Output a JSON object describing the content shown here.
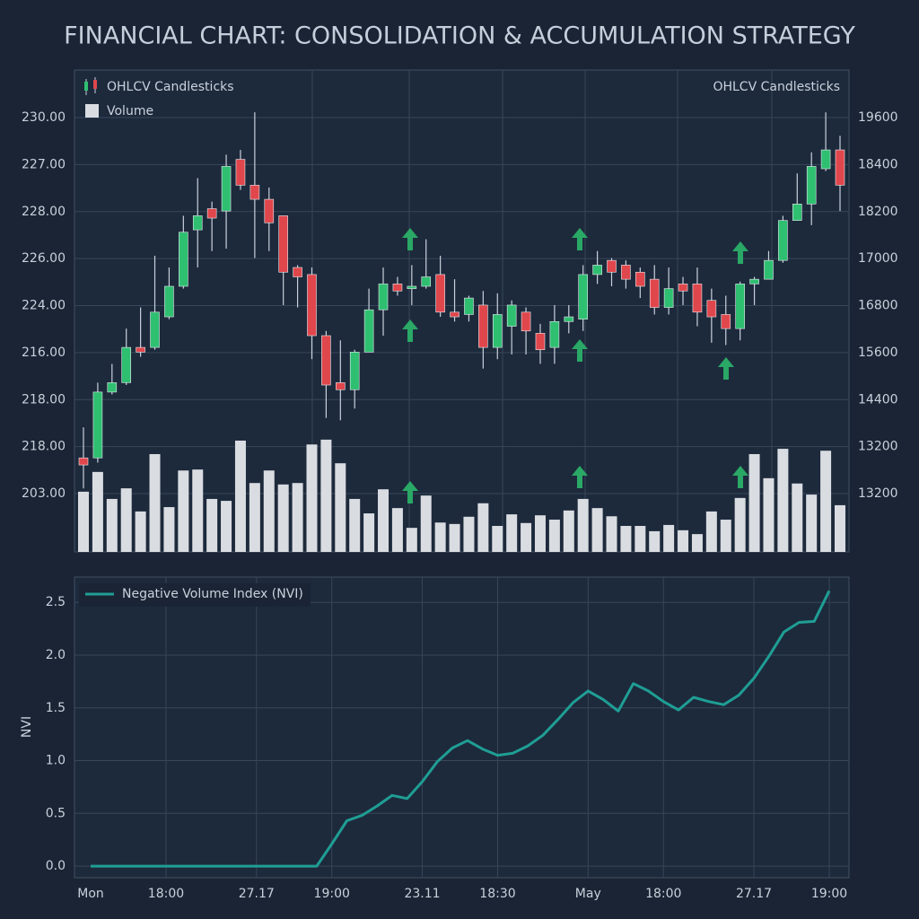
{
  "chart_data": [
    {
      "type": "candlestick",
      "title": "FINANCIAL CHART: CONSOLIDATION & ACCUMULATION STRATEGY",
      "y_axis_labels": [
        "230.00",
        "227.00",
        "228.00",
        "226.00",
        "224.00",
        "216.00",
        "218.00",
        "218.00",
        "203.00"
      ],
      "y2_axis_labels": [
        "19600",
        "18400",
        "18200",
        "17000",
        "16800",
        "15600",
        "14400",
        "13200",
        "13200"
      ],
      "ylim": [
        211.5,
        232.0
      ],
      "volume_lim": [
        0,
        100
      ],
      "series": [
        {
          "name": "OHLCV Candlesticks",
          "up_color": "#2fbf71",
          "down_color": "#e0474c",
          "open": [
            215.5,
            215.5,
            218.3,
            218.7,
            220.2,
            220.2,
            221.5,
            222.8,
            225.2,
            226.1,
            226.0,
            228.2,
            227.1,
            226.5,
            225.8,
            223.6,
            223.3,
            220.7,
            218.7,
            218.4,
            220.0,
            221.8,
            222.9,
            222.7,
            222.8,
            223.3,
            221.7,
            221.6,
            222.0,
            220.2,
            221.1,
            221.7,
            220.8,
            220.2,
            221.3,
            221.4,
            223.3,
            223.9,
            223.7,
            223.4,
            223.1,
            221.9,
            222.9,
            222.9,
            222.2,
            221.6,
            221.0,
            222.9,
            223.1,
            223.9,
            225.6,
            226.3,
            227.8,
            228.6
          ],
          "high": [
            216.8,
            218.7,
            219.5,
            221.0,
            221.9,
            224.1,
            223.6,
            225.8,
            227.4,
            226.4,
            228.4,
            228.6,
            230.2,
            227.0,
            225.8,
            223.7,
            223.6,
            220.9,
            220.5,
            220.1,
            222.7,
            223.6,
            223.2,
            223.7,
            224.8,
            224.1,
            223.1,
            222.4,
            222.6,
            222.5,
            222.2,
            221.9,
            221.2,
            222.0,
            222.0,
            223.7,
            224.3,
            224.0,
            223.9,
            223.6,
            223.7,
            223.6,
            223.2,
            223.6,
            222.7,
            222.4,
            223.0,
            223.2,
            224.3,
            225.8,
            227.6,
            228.5,
            230.2,
            229.2
          ],
          "low": [
            214.2,
            215.3,
            218.2,
            218.6,
            219.8,
            220.1,
            221.4,
            222.7,
            223.6,
            224.3,
            224.4,
            226.9,
            224.0,
            224.3,
            222.0,
            221.9,
            219.7,
            217.2,
            217.1,
            217.6,
            220.0,
            220.7,
            222.4,
            222.0,
            222.7,
            221.5,
            221.3,
            221.3,
            219.3,
            219.7,
            219.9,
            219.9,
            219.5,
            219.5,
            220.8,
            220.9,
            222.9,
            222.8,
            222.7,
            222.3,
            221.6,
            221.6,
            222.0,
            221.1,
            220.4,
            220.3,
            220.5,
            222.0,
            223.1,
            223.8,
            225.6,
            225.4,
            227.7,
            226.0
          ],
          "close": [
            215.2,
            218.3,
            218.7,
            220.2,
            220.0,
            221.7,
            222.8,
            225.1,
            225.8,
            225.7,
            227.9,
            227.1,
            226.5,
            225.5,
            223.4,
            223.2,
            220.7,
            218.6,
            218.4,
            220.0,
            221.8,
            222.9,
            222.6,
            222.8,
            223.2,
            221.7,
            221.5,
            222.3,
            220.2,
            221.6,
            222.0,
            220.9,
            220.1,
            221.3,
            221.5,
            223.3,
            223.7,
            223.4,
            223.1,
            222.8,
            221.9,
            222.7,
            222.6,
            221.7,
            221.5,
            221.0,
            222.9,
            223.1,
            223.9,
            225.6,
            226.3,
            227.9,
            228.6,
            227.1
          ]
        },
        {
          "name": "Volume",
          "color": "#d9dce1",
          "values": [
            12.5,
            16.6,
            11.0,
            13.2,
            8.4,
            20.3,
            9.3,
            16.9,
            17.1,
            11.0,
            10.6,
            23.1,
            14.3,
            16.9,
            14.0,
            14.3,
            22.3,
            23.3,
            18.4,
            11.0,
            8.0,
            13.0,
            9.1,
            5.0,
            11.7,
            6.1,
            5.8,
            7.3,
            10.1,
            5.4,
            7.8,
            6.0,
            7.6,
            6.7,
            8.6,
            11.0,
            9.1,
            7.4,
            5.4,
            5.4,
            4.3,
            5.6,
            4.5,
            3.7,
            8.4,
            6.7,
            11.2,
            20.3,
            15.3,
            21.4,
            14.2,
            11.9,
            21.0,
            9.7
          ]
        }
      ]
    },
    {
      "type": "line",
      "y_label": "NVI",
      "categories": [
        "Mon",
        null,
        null,
        null,
        null,
        "18:00",
        null,
        null,
        null,
        null,
        null,
        "27.17",
        null,
        null,
        null,
        null,
        "19:00",
        null,
        null,
        null,
        null,
        null,
        "23.11",
        null,
        null,
        null,
        null,
        "18:30",
        null,
        null,
        null,
        null,
        null,
        "May",
        null,
        null,
        null,
        null,
        "18:00",
        null,
        null,
        null,
        null,
        null,
        "27.17",
        null,
        null,
        null,
        null,
        "19:00"
      ],
      "ylim": [
        -0.11,
        2.74
      ],
      "yticks": [
        {
          "value": 0,
          "label": "0.0"
        },
        0.5,
        {
          "value": 1,
          "label": "1.0"
        },
        1.5,
        {
          "value": 2,
          "label": "2.0"
        },
        2.5
      ],
      "grid": true,
      "series": [
        {
          "name": "Negative Volume Index (NVI)",
          "color": "#1f9e94",
          "values": [
            0,
            0,
            0,
            0,
            0,
            0,
            0,
            0,
            0,
            0,
            0,
            0,
            0,
            0,
            0,
            0,
            0.21,
            0.43,
            0.48,
            0.57,
            0.67,
            0.64,
            0.8,
            0.99,
            1.12,
            1.19,
            1.11,
            1.05,
            1.07,
            1.14,
            1.24,
            1.39,
            1.55,
            1.66,
            1.58,
            1.47,
            1.73,
            1.66,
            1.56,
            1.48,
            1.6,
            1.56,
            1.53,
            1.62,
            1.78,
            1.99,
            2.22,
            2.31,
            2.32,
            2.61
          ]
        }
      ]
    }
  ]
}
